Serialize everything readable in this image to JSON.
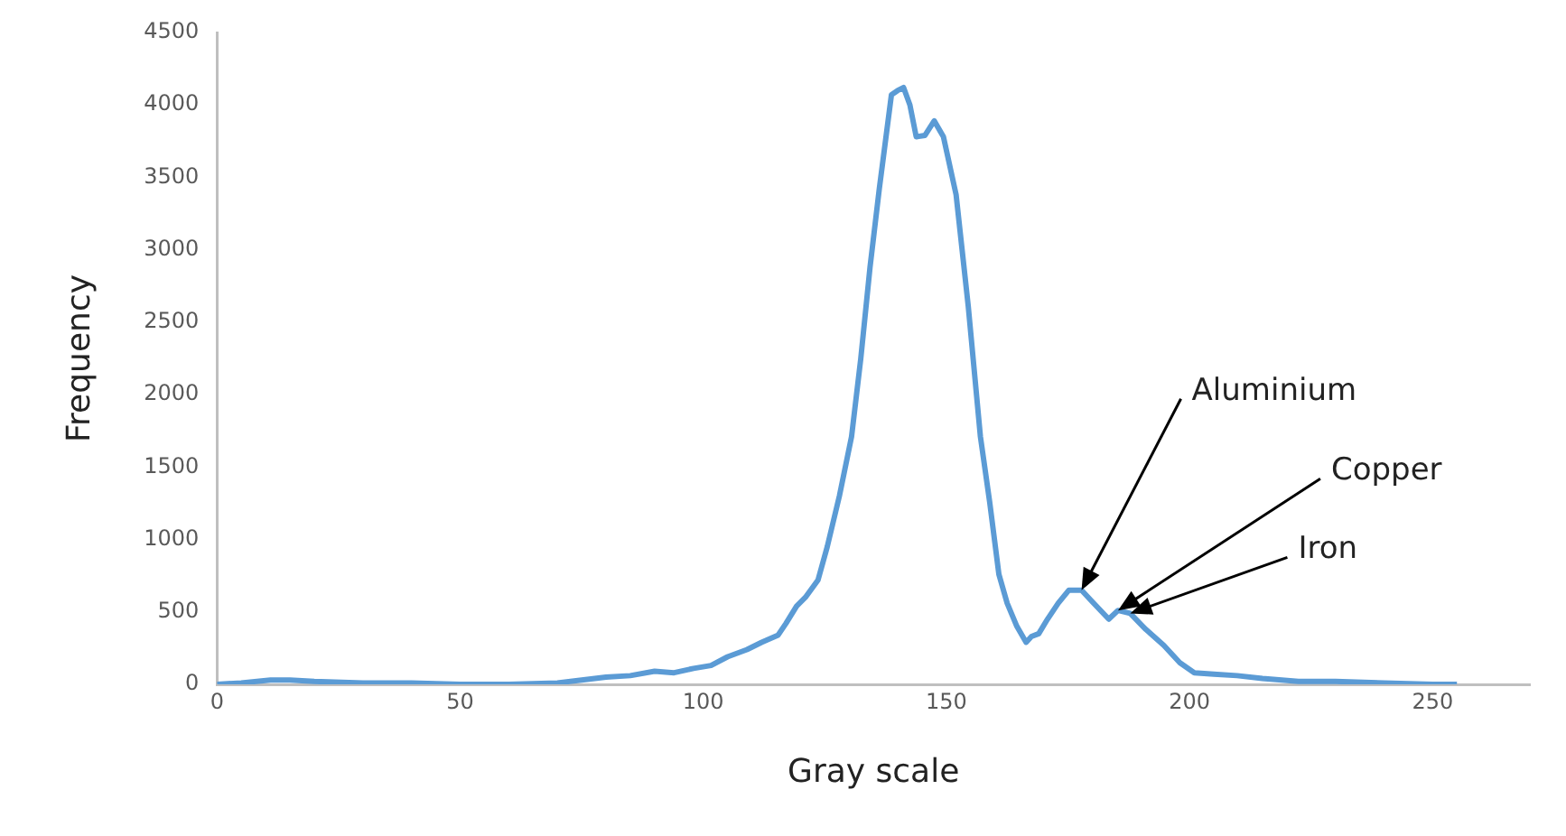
{
  "chart_data": {
    "type": "line",
    "xlabel": "Gray scale",
    "ylabel": "Frequency",
    "x": [
      0,
      5,
      11,
      15,
      20,
      30,
      40,
      50,
      60,
      70,
      75,
      80,
      85,
      90,
      94,
      98,
      101.6,
      105,
      109,
      112,
      115.4,
      117,
      119.2,
      121,
      123.6,
      125.5,
      128,
      130.5,
      132.4,
      134.3,
      136.2,
      138.7,
      140,
      141.2,
      142.5,
      143.8,
      145.6,
      147.5,
      149.4,
      152,
      154.5,
      157,
      158.9,
      160.8,
      162.5,
      164.5,
      166.4,
      167.5,
      169,
      170.8,
      173,
      175.2,
      177.8,
      180,
      183.4,
      185.3,
      187.8,
      191,
      194.7,
      198,
      201,
      205,
      209.8,
      215,
      222.4,
      230,
      240,
      250,
      255
    ],
    "series": [
      {
        "color": "#5b9bd5",
        "values": [
          0,
          10,
          30,
          30,
          20,
          10,
          10,
          0,
          0,
          10,
          30,
          50,
          60,
          90,
          80,
          110,
          130,
          190,
          240,
          290,
          340,
          420,
          540,
          600,
          720,
          950,
          1300,
          1710,
          2250,
          2880,
          3420,
          4070,
          4100,
          4120,
          4000,
          3780,
          3790,
          3890,
          3780,
          3380,
          2610,
          1710,
          1260,
          760,
          560,
          400,
          290,
          330,
          350,
          450,
          560,
          650,
          650,
          570,
          450,
          510,
          490,
          380,
          270,
          150,
          80,
          70,
          60,
          40,
          20,
          20,
          10,
          0,
          0
        ]
      }
    ],
    "xlim": [
      0,
      270
    ],
    "xticks": [
      0,
      50,
      100,
      150,
      200,
      250
    ],
    "ylim": [
      0,
      4500
    ],
    "yticks": [
      0,
      500,
      1000,
      1500,
      2000,
      2500,
      3000,
      3500,
      4000,
      4500
    ],
    "grid": false,
    "legend": false,
    "marker": "none",
    "line_style": "solid",
    "annotations": [
      {
        "text": "Aluminium",
        "x": 177.8,
        "y": 650
      },
      {
        "text": "Copper",
        "x": 185.3,
        "y": 510
      },
      {
        "text": "Iron",
        "x": 187.8,
        "y": 490
      }
    ]
  }
}
